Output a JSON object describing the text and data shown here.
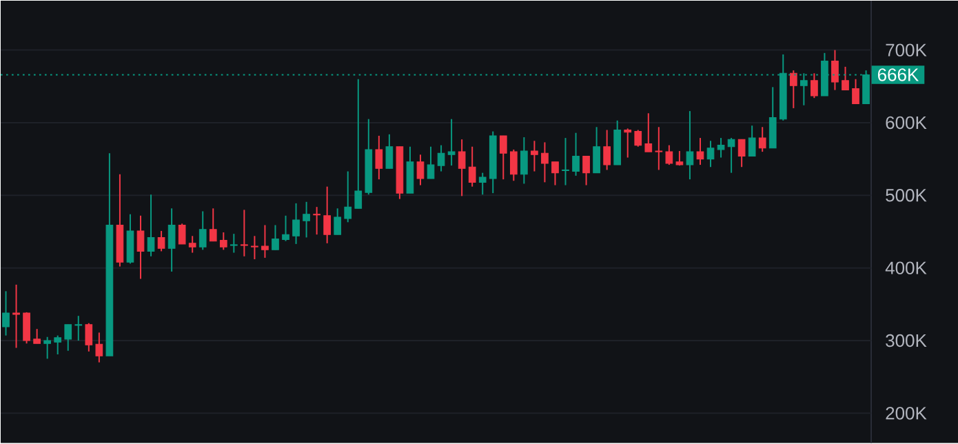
{
  "chart_data": {
    "type": "candlestick",
    "categories": [
      null,
      null,
      null,
      null,
      null,
      null,
      null,
      null,
      null,
      null,
      null,
      null,
      null,
      null,
      null,
      null,
      null,
      null,
      null,
      null,
      null,
      null,
      null,
      null,
      null,
      null,
      null,
      null,
      null,
      null,
      null,
      null,
      null,
      null,
      null,
      null,
      null,
      null,
      null,
      null,
      null,
      null,
      null,
      null,
      null,
      null,
      null,
      null,
      null,
      null,
      null,
      null,
      null,
      null,
      null,
      null,
      null,
      null,
      null,
      null,
      null,
      null,
      null,
      null,
      null,
      null,
      null,
      null,
      null,
      null,
      null,
      null,
      null,
      null,
      null,
      null,
      null,
      null,
      null,
      null,
      null,
      null,
      null,
      null
    ],
    "ohlc": [
      [
        319,
        368,
        307,
        338
      ],
      [
        338,
        377,
        290,
        336
      ],
      [
        338,
        339,
        296,
        300
      ],
      [
        302,
        316,
        296,
        296
      ],
      [
        296,
        305,
        275,
        300
      ],
      [
        298,
        307,
        281,
        304
      ],
      [
        302,
        322,
        286,
        322
      ],
      [
        321,
        334,
        300,
        322
      ],
      [
        322,
        324,
        285,
        294
      ],
      [
        295,
        311,
        270,
        279
      ],
      [
        279,
        558,
        279,
        459
      ],
      [
        459,
        529,
        402,
        408
      ],
      [
        408,
        474,
        406,
        451
      ],
      [
        451,
        472,
        385,
        423
      ],
      [
        423,
        501,
        416,
        442
      ],
      [
        442,
        451,
        423,
        427
      ],
      [
        427,
        482,
        395,
        459
      ],
      [
        459,
        461,
        433,
        433
      ],
      [
        434,
        444,
        421,
        429
      ],
      [
        429,
        478,
        425,
        453
      ],
      [
        453,
        482,
        437,
        437
      ],
      [
        438,
        449,
        425,
        429
      ],
      [
        431,
        447,
        421,
        432
      ],
      [
        432,
        480,
        416,
        431
      ],
      [
        430,
        444,
        412,
        429
      ],
      [
        430,
        459,
        414,
        425
      ],
      [
        425,
        459,
        425,
        440
      ],
      [
        439,
        472,
        437,
        446
      ],
      [
        444,
        489,
        433,
        466
      ],
      [
        465,
        491,
        442,
        474
      ],
      [
        474,
        484,
        446,
        473
      ],
      [
        472,
        512,
        434,
        446
      ],
      [
        446,
        482,
        446,
        470
      ],
      [
        468,
        533,
        463,
        484
      ],
      [
        482,
        660,
        482,
        506
      ],
      [
        504,
        605,
        501,
        563
      ],
      [
        563,
        582,
        522,
        537
      ],
      [
        537,
        584,
        537,
        567
      ],
      [
        567,
        567,
        495,
        503
      ],
      [
        503,
        567,
        503,
        546
      ],
      [
        546,
        556,
        514,
        523
      ],
      [
        523,
        567,
        523,
        542
      ],
      [
        541,
        569,
        533,
        558
      ],
      [
        556,
        605,
        541,
        560
      ],
      [
        560,
        577,
        499,
        537
      ],
      [
        539,
        567,
        512,
        518
      ],
      [
        518,
        531,
        501,
        525
      ],
      [
        523,
        588,
        503,
        582
      ],
      [
        582,
        582,
        522,
        558
      ],
      [
        560,
        563,
        520,
        529
      ],
      [
        529,
        580,
        516,
        561
      ],
      [
        561,
        575,
        533,
        556
      ],
      [
        558,
        573,
        518,
        544
      ],
      [
        546,
        546,
        514,
        531
      ],
      [
        534,
        579,
        514,
        535
      ],
      [
        533,
        586,
        527,
        554
      ],
      [
        554,
        554,
        514,
        531
      ],
      [
        531,
        594,
        531,
        567
      ],
      [
        567,
        590,
        535,
        542
      ],
      [
        542,
        603,
        542,
        590
      ],
      [
        590,
        592,
        552,
        587
      ],
      [
        588,
        590,
        567,
        569
      ],
      [
        571,
        613,
        560,
        560
      ],
      [
        561,
        594,
        535,
        560
      ],
      [
        560,
        569,
        542,
        544
      ],
      [
        546,
        561,
        541,
        542
      ],
      [
        542,
        616,
        522,
        560
      ],
      [
        560,
        579,
        542,
        550
      ],
      [
        550,
        575,
        539,
        565
      ],
      [
        563,
        579,
        552,
        569
      ],
      [
        567,
        579,
        531,
        577
      ],
      [
        577,
        577,
        539,
        554
      ],
      [
        554,
        596,
        554,
        579
      ],
      [
        579,
        594,
        560,
        565
      ],
      [
        565,
        649,
        565,
        607
      ],
      [
        605,
        694,
        603,
        668
      ],
      [
        668,
        672,
        620,
        651
      ],
      [
        651,
        668,
        624,
        658
      ],
      [
        658,
        668,
        634,
        637
      ],
      [
        637,
        696,
        637,
        685
      ],
      [
        685,
        700,
        645,
        656
      ],
      [
        658,
        677,
        645,
        645
      ],
      [
        647,
        660,
        626,
        626
      ],
      [
        626,
        672,
        626,
        666
      ]
    ],
    "colors": [
      "#089981",
      "#f23645",
      "#f23645",
      "#f23645",
      "#089981",
      "#089981",
      "#089981",
      "#089981",
      "#f23645",
      "#f23645",
      "#089981",
      "#f23645",
      "#089981",
      "#f23645",
      "#089981",
      "#f23645",
      "#089981",
      "#f23645",
      "#f23645",
      "#089981",
      "#f23645",
      "#f23645",
      "#089981",
      "#f23645",
      "#f23645",
      "#f23645",
      "#089981",
      "#089981",
      "#089981",
      "#089981",
      "#f23645",
      "#f23645",
      "#089981",
      "#089981",
      "#089981",
      "#089981",
      "#f23645",
      "#089981",
      "#f23645",
      "#089981",
      "#f23645",
      "#089981",
      "#089981",
      "#089981",
      "#f23645",
      "#f23645",
      "#089981",
      "#089981",
      "#f23645",
      "#f23645",
      "#089981",
      "#f23645",
      "#f23645",
      "#f23645",
      "#089981",
      "#089981",
      "#f23645",
      "#089981",
      "#f23645",
      "#089981",
      "#f23645",
      "#f23645",
      "#f23645",
      "#f23645",
      "#f23645",
      "#f23645",
      "#089981",
      "#f23645",
      "#089981",
      "#089981",
      "#089981",
      "#f23645",
      "#089981",
      "#f23645",
      "#089981",
      "#089981",
      "#f23645",
      "#089981",
      "#f23645",
      "#089981",
      "#f23645",
      "#f23645",
      "#f23645",
      "#089981"
    ],
    "ylim": [
      159,
      768
    ],
    "yticks": [
      {
        "value": 200,
        "label": "200K"
      },
      {
        "value": 300,
        "label": "300K"
      },
      {
        "value": 400,
        "label": "400K"
      },
      {
        "value": 500,
        "label": "500K"
      },
      {
        "value": 600,
        "label": "600K"
      },
      {
        "value": 700,
        "label": "700K"
      }
    ],
    "ref_lines": [
      {
        "axis": "y",
        "value": 666,
        "label": "666K",
        "color": "#089981",
        "line_style": "dotted"
      }
    ],
    "grid": "y",
    "tick_labels": "y"
  }
}
